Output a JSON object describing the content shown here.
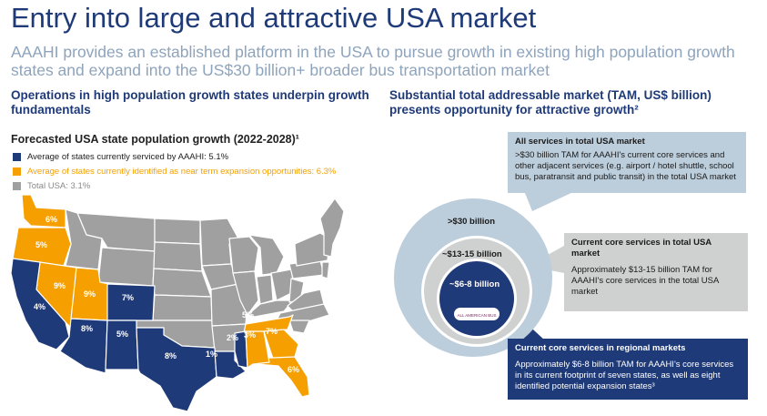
{
  "title": "Entry into large and attractive USA market",
  "subtitle": "AAAHI provides an established platform in the USA to pursue growth in existing high population growth states and expand into the US$30 billion+ broader bus transportation market",
  "left": {
    "heading": "Operations in high population growth states underpin growth fundamentals",
    "map_title": "Forecasted USA state population growth (2022-2028)¹",
    "legend": [
      {
        "label": "Average of states currently serviced by AAAHI: 5.1%",
        "color": "#1f3a78"
      },
      {
        "label": "Average of states currently identified as near term expansion opportunities: 6.3%",
        "color": "#f5a000"
      },
      {
        "label": "Total USA: 3.1%",
        "color": "#a0a0a0"
      }
    ],
    "state_labels": {
      "wa": "6%",
      "or": "5%",
      "ca": "4%",
      "nv": "9%",
      "az": "8%",
      "ut": "9%",
      "co": "7%",
      "nm": "5%",
      "tx": "8%",
      "la": "1%",
      "ms": "2%",
      "al": "3%",
      "tn": "5%",
      "ga": "7%",
      "fl": "6%"
    }
  },
  "right": {
    "heading": "Substantial total addressable market (TAM, US$ billion) presents opportunity for attractive growth²",
    "rings": {
      "outer": ">$30 billion",
      "middle": "~$13-15 billion",
      "inner": "~$6-8 billion"
    },
    "logo_text": "ALL AMERICAN BUS",
    "callouts": {
      "all": {
        "title": "All services in total USA market",
        "body": ">$30 billion TAM for AAAHI's current core services and other adjacent services (e.g. airport / hotel shuttle, school bus, paratransit and public transit) in the total USA market"
      },
      "core": {
        "title": "Current core services in total USA market",
        "body": "Approximately $13-15 billion TAM for AAAHI's core services in the total USA market"
      },
      "regional": {
        "title": "Current core services in regional markets",
        "body": "Approximately $6-8 billion TAM for AAAHI's core services in its current footprint of seven states, as well as eight identified potential expansion states³"
      }
    }
  },
  "colors": {
    "navy": "#1f3a78",
    "orange": "#f5a000",
    "grey": "#a0a0a0",
    "light_blue": "#bccddb",
    "light_grey": "#cfd1d0"
  }
}
